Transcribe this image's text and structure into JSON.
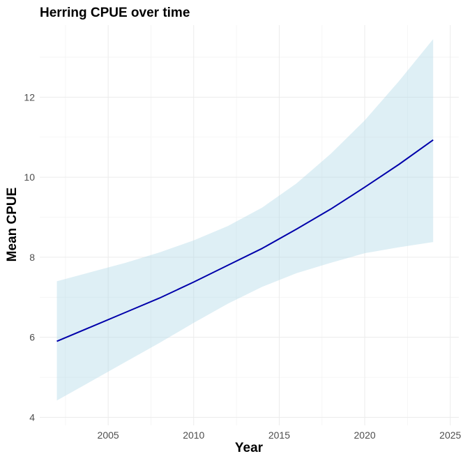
{
  "chart_data": {
    "type": "line",
    "title": "Herring CPUE over time",
    "xlabel": "Year",
    "ylabel": "Mean CPUE",
    "xlim": [
      2001.0,
      2025.5
    ],
    "ylim": [
      3.8,
      13.8
    ],
    "x_ticks": [
      2005,
      2010,
      2015,
      2020,
      2025
    ],
    "y_ticks": [
      4,
      6,
      8,
      10,
      12
    ],
    "grid": true,
    "line_color": "#0000aa",
    "band_color": "#add8e6",
    "x": [
      2002,
      2004,
      2006,
      2008,
      2010,
      2012,
      2014,
      2016,
      2018,
      2020,
      2022,
      2024
    ],
    "y": [
      5.9,
      6.26,
      6.62,
      6.98,
      7.38,
      7.8,
      8.22,
      8.7,
      9.2,
      9.75,
      10.32,
      10.93
    ],
    "lower": [
      4.42,
      4.9,
      5.38,
      5.86,
      6.36,
      6.84,
      7.26,
      7.6,
      7.86,
      8.1,
      8.25,
      8.38
    ],
    "upper": [
      7.4,
      7.63,
      7.86,
      8.12,
      8.42,
      8.78,
      9.24,
      9.84,
      10.58,
      11.42,
      12.4,
      13.45
    ]
  }
}
